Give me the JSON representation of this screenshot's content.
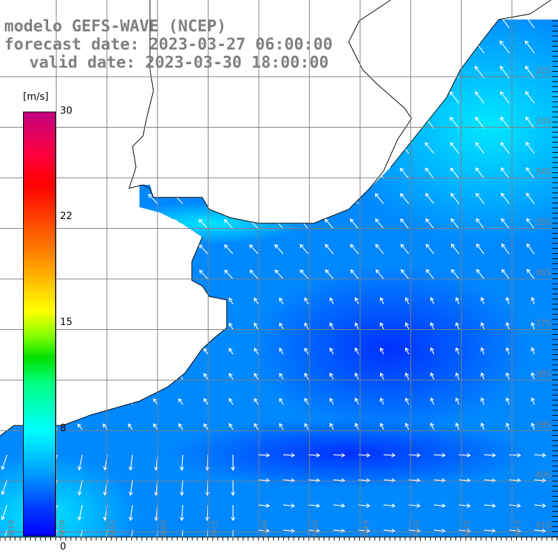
{
  "title": {
    "line1": "modelo GEFS-WAVE (NCEP)",
    "line2": "forecast date: 2023-03-27 06:00:00",
    "line3": "valid date: 2023-03-30 18:00:00"
  },
  "colorbar": {
    "unit": "[m/s]",
    "labels": [
      "30",
      "22",
      "15",
      "8",
      "0"
    ],
    "values": [
      30,
      22,
      15,
      8,
      0
    ]
  },
  "grid": {
    "lat_labels": [
      "32S",
      "33S",
      "34S",
      "35S",
      "36S",
      "37S",
      "38S",
      "39S",
      "40S",
      "41S"
    ],
    "lon_labels": [
      "61W",
      "60W",
      "59W",
      "58W",
      "57W",
      "56W",
      "55W",
      "54W",
      "53W",
      "52W",
      "51W"
    ]
  },
  "colors": {
    "label": "#808080",
    "ocean": "#0080ff",
    "arrow": "#ffffff"
  }
}
